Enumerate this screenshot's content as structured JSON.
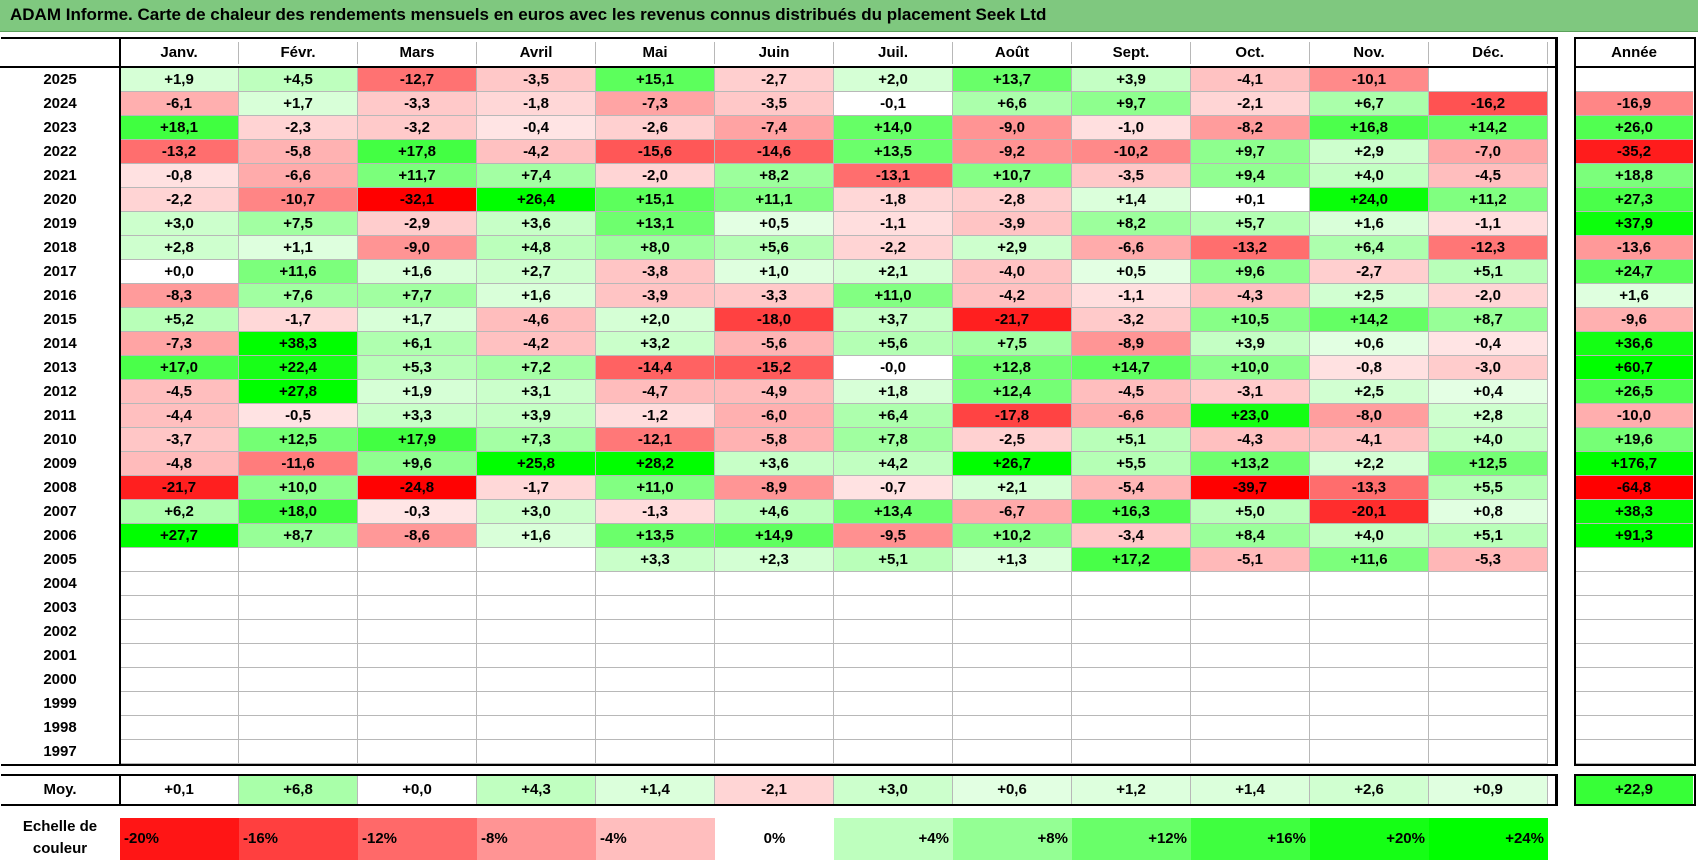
{
  "title": "ADAM Informe. Carte de chaleur des rendements mensuels en euros avec les revenus connus distribués du placement Seek Ltd",
  "months": [
    "Janv.",
    "Févr.",
    "Mars",
    "Avril",
    "Mai",
    "Juin",
    "Juil.",
    "Août",
    "Sept.",
    "Oct.",
    "Nov.",
    "Déc."
  ],
  "year_header": "Année",
  "avg_label": "Moy.",
  "scale_label": "Echelle de couleur",
  "colors": {
    "positive": "#00ff00",
    "negative": "#ff0000",
    "neutral": "#ffffff",
    "title_bg": "#7fc87f"
  },
  "chart_data": {
    "type": "heatmap",
    "title": "ADAM Informe. Carte de chaleur des rendements mensuels en euros avec les revenus connus distribués du placement Seek Ltd",
    "columns": [
      "Janv.",
      "Févr.",
      "Mars",
      "Avril",
      "Mai",
      "Juin",
      "Juil.",
      "Août",
      "Sept.",
      "Oct.",
      "Nov.",
      "Déc."
    ],
    "rows": [
      {
        "year": "2025",
        "values": [
          "+1,9",
          "+4,5",
          "-12,7",
          "-3,5",
          "+15,1",
          "-2,7",
          "+2,0",
          "+13,7",
          "+3,9",
          "-4,1",
          "-10,1",
          ""
        ],
        "annual": ""
      },
      {
        "year": "2024",
        "values": [
          "-6,1",
          "+1,7",
          "-3,3",
          "-1,8",
          "-7,3",
          "-3,5",
          "-0,1",
          "+6,6",
          "+9,7",
          "-2,1",
          "+6,7",
          "-16,2"
        ],
        "annual": "-16,9"
      },
      {
        "year": "2023",
        "values": [
          "+18,1",
          "-2,3",
          "-3,2",
          "-0,4",
          "-2,6",
          "-7,4",
          "+14,0",
          "-9,0",
          "-1,0",
          "-8,2",
          "+16,8",
          "+14,2"
        ],
        "annual": "+26,0"
      },
      {
        "year": "2022",
        "values": [
          "-13,2",
          "-5,8",
          "+17,8",
          "-4,2",
          "-15,6",
          "-14,6",
          "+13,5",
          "-9,2",
          "-10,2",
          "+9,7",
          "+2,9",
          "-7,0"
        ],
        "annual": "-35,2"
      },
      {
        "year": "2021",
        "values": [
          "-0,8",
          "-6,6",
          "+11,7",
          "+7,4",
          "-2,0",
          "+8,2",
          "-13,1",
          "+10,7",
          "-3,5",
          "+9,4",
          "+4,0",
          "-4,5"
        ],
        "annual": "+18,8"
      },
      {
        "year": "2020",
        "values": [
          "-2,2",
          "-10,7",
          "-32,1",
          "+26,4",
          "+15,1",
          "+11,1",
          "-1,8",
          "-2,8",
          "+1,4",
          "+0,1",
          "+24,0",
          "+11,2"
        ],
        "annual": "+27,3"
      },
      {
        "year": "2019",
        "values": [
          "+3,0",
          "+7,5",
          "-2,9",
          "+3,6",
          "+13,1",
          "+0,5",
          "-1,1",
          "-3,9",
          "+8,2",
          "+5,7",
          "+1,6",
          "-1,1"
        ],
        "annual": "+37,9"
      },
      {
        "year": "2018",
        "values": [
          "+2,8",
          "+1,1",
          "-9,0",
          "+4,8",
          "+8,0",
          "+5,6",
          "-2,2",
          "+2,9",
          "-6,6",
          "-13,2",
          "+6,4",
          "-12,3"
        ],
        "annual": "-13,6"
      },
      {
        "year": "2017",
        "values": [
          "+0,0",
          "+11,6",
          "+1,6",
          "+2,7",
          "-3,8",
          "+1,0",
          "+2,1",
          "-4,0",
          "+0,5",
          "+9,6",
          "-2,7",
          "+5,1"
        ],
        "annual": "+24,7"
      },
      {
        "year": "2016",
        "values": [
          "-8,3",
          "+7,6",
          "+7,7",
          "+1,6",
          "-3,9",
          "-3,3",
          "+11,0",
          "-4,2",
          "-1,1",
          "-4,3",
          "+2,5",
          "-2,0"
        ],
        "annual": "+1,6"
      },
      {
        "year": "2015",
        "values": [
          "+5,2",
          "-1,7",
          "+1,7",
          "-4,6",
          "+2,0",
          "-18,0",
          "+3,7",
          "-21,7",
          "-3,2",
          "+10,5",
          "+14,2",
          "+8,7"
        ],
        "annual": "-9,6"
      },
      {
        "year": "2014",
        "values": [
          "-7,3",
          "+38,3",
          "+6,1",
          "-4,2",
          "+3,2",
          "-5,6",
          "+5,6",
          "+7,5",
          "-8,9",
          "+3,9",
          "+0,6",
          "-0,4"
        ],
        "annual": "+36,6"
      },
      {
        "year": "2013",
        "values": [
          "+17,0",
          "+22,4",
          "+5,3",
          "+7,2",
          "-14,4",
          "-15,2",
          "-0,0",
          "+12,8",
          "+14,7",
          "+10,0",
          "-0,8",
          "-3,0"
        ],
        "annual": "+60,7"
      },
      {
        "year": "2012",
        "values": [
          "-4,5",
          "+27,8",
          "+1,9",
          "+3,1",
          "-4,7",
          "-4,9",
          "+1,8",
          "+12,4",
          "-4,5",
          "-3,1",
          "+2,5",
          "+0,4"
        ],
        "annual": "+26,5"
      },
      {
        "year": "2011",
        "values": [
          "-4,4",
          "-0,5",
          "+3,3",
          "+3,9",
          "-1,2",
          "-6,0",
          "+6,4",
          "-17,8",
          "-6,6",
          "+23,0",
          "-8,0",
          "+2,8"
        ],
        "annual": "-10,0"
      },
      {
        "year": "2010",
        "values": [
          "-3,7",
          "+12,5",
          "+17,9",
          "+7,3",
          "-12,1",
          "-5,8",
          "+7,8",
          "-2,5",
          "+5,1",
          "-4,3",
          "-4,1",
          "+4,0"
        ],
        "annual": "+19,6"
      },
      {
        "year": "2009",
        "values": [
          "-4,8",
          "-11,6",
          "+9,6",
          "+25,8",
          "+28,2",
          "+3,6",
          "+4,2",
          "+26,7",
          "+5,5",
          "+13,2",
          "+2,2",
          "+12,5"
        ],
        "annual": "+176,7"
      },
      {
        "year": "2008",
        "values": [
          "-21,7",
          "+10,0",
          "-24,8",
          "-1,7",
          "+11,0",
          "-8,9",
          "-0,7",
          "+2,1",
          "-5,4",
          "-39,7",
          "-13,3",
          "+5,5"
        ],
        "annual": "-64,8"
      },
      {
        "year": "2007",
        "values": [
          "+6,2",
          "+18,0",
          "-0,3",
          "+3,0",
          "-1,3",
          "+4,6",
          "+13,4",
          "-6,7",
          "+16,3",
          "+5,0",
          "-20,1",
          "+0,8"
        ],
        "annual": "+38,3"
      },
      {
        "year": "2006",
        "values": [
          "+27,7",
          "+8,7",
          "-8,6",
          "+1,6",
          "+13,5",
          "+14,9",
          "-9,5",
          "+10,2",
          "-3,4",
          "+8,4",
          "+4,0",
          "+5,1"
        ],
        "annual": "+91,3"
      },
      {
        "year": "2005",
        "values": [
          "",
          "",
          "",
          "",
          "+3,3",
          "+2,3",
          "+5,1",
          "+1,3",
          "+17,2",
          "-5,1",
          "+11,6",
          "-5,3"
        ],
        "annual": ""
      },
      {
        "year": "2004",
        "values": [
          "",
          "",
          "",
          "",
          "",
          "",
          "",
          "",
          "",
          "",
          "",
          ""
        ],
        "annual": ""
      },
      {
        "year": "2003",
        "values": [
          "",
          "",
          "",
          "",
          "",
          "",
          "",
          "",
          "",
          "",
          "",
          ""
        ],
        "annual": ""
      },
      {
        "year": "2002",
        "values": [
          "",
          "",
          "",
          "",
          "",
          "",
          "",
          "",
          "",
          "",
          "",
          ""
        ],
        "annual": ""
      },
      {
        "year": "2001",
        "values": [
          "",
          "",
          "",
          "",
          "",
          "",
          "",
          "",
          "",
          "",
          "",
          ""
        ],
        "annual": ""
      },
      {
        "year": "2000",
        "values": [
          "",
          "",
          "",
          "",
          "",
          "",
          "",
          "",
          "",
          "",
          "",
          ""
        ],
        "annual": ""
      },
      {
        "year": "1999",
        "values": [
          "",
          "",
          "",
          "",
          "",
          "",
          "",
          "",
          "",
          "",
          "",
          ""
        ],
        "annual": ""
      },
      {
        "year": "1998",
        "values": [
          "",
          "",
          "",
          "",
          "",
          "",
          "",
          "",
          "",
          "",
          "",
          ""
        ],
        "annual": ""
      },
      {
        "year": "1997",
        "values": [
          "",
          "",
          "",
          "",
          "",
          "",
          "",
          "",
          "",
          "",
          "",
          ""
        ],
        "annual": ""
      }
    ],
    "averages": [
      "+0,1",
      "+6,8",
      "+0,0",
      "+4,3",
      "+1,4",
      "-2,1",
      "+3,0",
      "+0,6",
      "+1,2",
      "+1,4",
      "+2,6",
      "+0,9"
    ],
    "annual_average": "+22,9",
    "color_scale": [
      "-20%",
      "-16%",
      "-12%",
      "-8%",
      "-4%",
      "0%",
      "+4%",
      "+8%",
      "+12%",
      "+16%",
      "+20%",
      "+24%"
    ]
  }
}
